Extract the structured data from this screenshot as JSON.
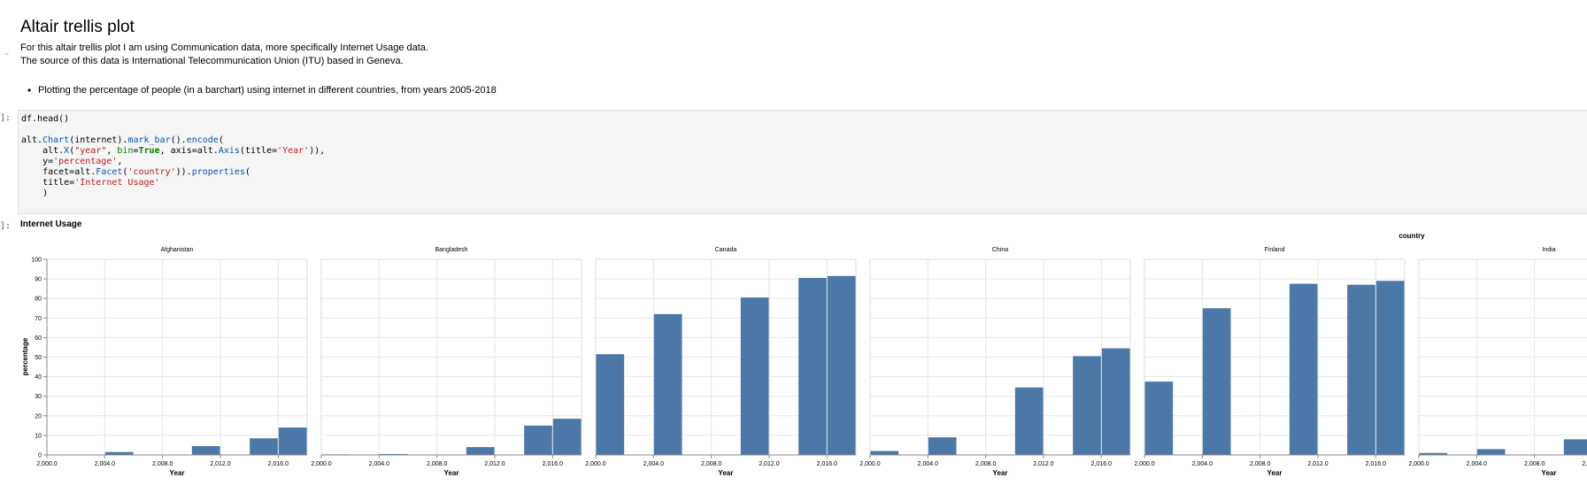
{
  "notebook": {
    "heading": "Altair trellis plot",
    "intro_line_1": "For this altair trellis plot I am using Communication data, more specifically Internet Usage data.",
    "intro_line_2": "The source of this data is International Telecommunication Union (ITU) based in Geneva.",
    "bullet": "Plotting the percentage of people (in a barchart) using internet in different countries, from years 2005-2018",
    "code_prompt": "]:",
    "output_prompt": "]:"
  },
  "code": {
    "line1": "df.head()",
    "line3_a": "alt.",
    "line3_b": "Chart",
    "line3_c": "(internet).",
    "line3_d": "mark_bar",
    "line3_e": "().",
    "line3_f": "encode",
    "line3_g": "(",
    "line4_a": "    alt.",
    "line4_b": "X",
    "line4_c": "(",
    "line4_d": "\"year\"",
    "line4_e": ", ",
    "line4_f": "bin",
    "line4_g": "=",
    "line4_h": "True",
    "line4_i": ", axis=alt.",
    "line4_j": "Axis",
    "line4_k": "(title=",
    "line4_l": "'Year'",
    "line4_m": ")),",
    "line5_a": "    y=",
    "line5_b": "'percentage'",
    "line5_c": ",",
    "line6_a": "    facet=alt.",
    "line6_b": "Facet",
    "line6_c": "(",
    "line6_d": "'country'",
    "line6_e": ")).",
    "line6_f": "properties",
    "line6_g": "(",
    "line7_a": "    title=",
    "line7_b": "'Internet Usage'",
    "line8": "    )"
  },
  "chart_data": {
    "type": "bar",
    "title": "Internet Usage",
    "facet_title": "country",
    "xlabel": "Year",
    "ylabel": "percentage",
    "ylim": [
      0,
      100
    ],
    "yticks": [
      0,
      10,
      20,
      30,
      40,
      50,
      60,
      70,
      80,
      90,
      100
    ],
    "xlim": [
      2000,
      2018
    ],
    "xticks": [
      2000,
      2004,
      2008,
      2012,
      2016
    ],
    "xtick_labels": [
      "2,000.0",
      "2,004.0",
      "2,008.0",
      "2,012.0",
      "2,016.0"
    ],
    "bin_edges": [
      2000,
      2002,
      2004,
      2006,
      2008,
      2010,
      2012,
      2014,
      2016,
      2018
    ],
    "bar_color": "#4c78a8",
    "grid": true,
    "facets": [
      {
        "name": "Afghanistan",
        "values": [
          0,
          0,
          1.5,
          0,
          0,
          4.5,
          0,
          8.5,
          14
        ]
      },
      {
        "name": "Bangladesh",
        "values": [
          0.3,
          0,
          0.5,
          0,
          0,
          4,
          0,
          15,
          18.5
        ]
      },
      {
        "name": "Canada",
        "values": [
          51.5,
          0,
          72,
          0,
          0,
          80.5,
          0,
          90.5,
          91.5
        ]
      },
      {
        "name": "China",
        "values": [
          2,
          0,
          9,
          0,
          0,
          34.5,
          0,
          50.5,
          54.5
        ]
      },
      {
        "name": "Finland",
        "values": [
          37.5,
          0,
          75,
          0,
          0,
          87.5,
          0,
          87,
          89
        ]
      },
      {
        "name": "India",
        "values": [
          1,
          0,
          3,
          0,
          0,
          8,
          0,
          0,
          0
        ]
      }
    ]
  }
}
